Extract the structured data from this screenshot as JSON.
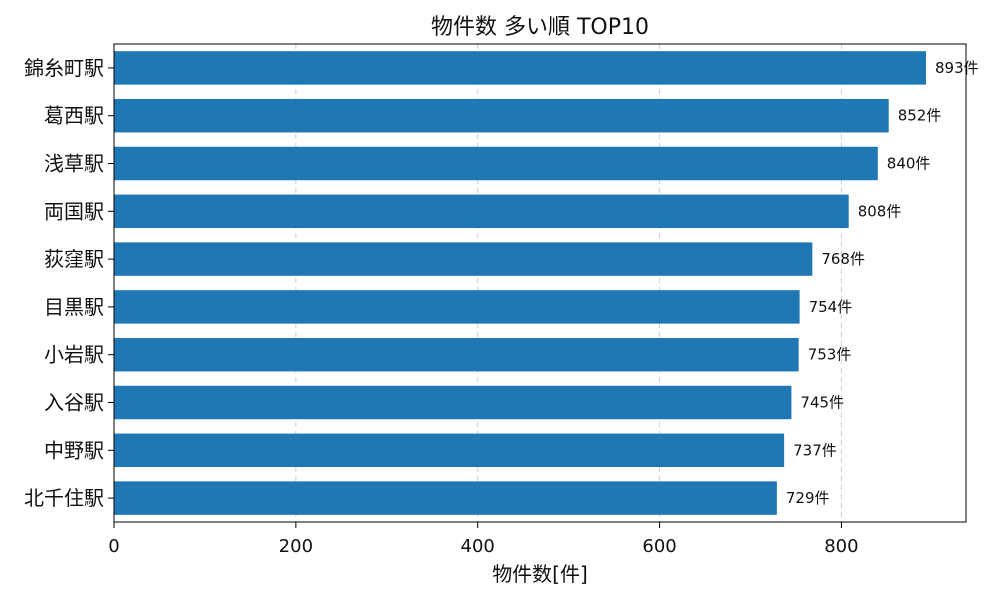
{
  "chart_data": {
    "type": "bar",
    "orientation": "horizontal",
    "title": "物件数 多い順 TOP10",
    "xlabel": "物件数[件]",
    "ylabel": "",
    "categories": [
      "錦糸町駅",
      "葛西駅",
      "浅草駅",
      "両国駅",
      "荻窪駅",
      "目黒駅",
      "小岩駅",
      "入谷駅",
      "中野駅",
      "北千住駅"
    ],
    "values": [
      893,
      852,
      840,
      808,
      768,
      754,
      753,
      745,
      737,
      729
    ],
    "value_labels": [
      "893件",
      "852件",
      "840件",
      "808件",
      "768件",
      "754件",
      "753件",
      "745件",
      "737件",
      "729件"
    ],
    "xlim": [
      0,
      937
    ],
    "xticks": [
      0,
      200,
      400,
      600,
      800
    ],
    "xtick_labels": [
      "0",
      "200",
      "400",
      "600",
      "800"
    ],
    "grid": {
      "x": true,
      "y": false,
      "style": "dashed"
    },
    "bar_color": "#1f77b4"
  }
}
